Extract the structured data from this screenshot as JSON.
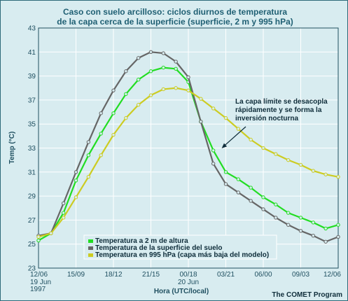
{
  "chart_data": {
    "type": "line",
    "title_line1": "Caso con suelo arcilloso: ciclos diurnos de temperatura",
    "title_line2": "de la capa cerca de la superficie (superficie, 2 m y 995 hPa)",
    "ylabel": "Temp (°C)",
    "xlabel": "Hora (UTC/local)",
    "ylim": [
      23,
      43
    ],
    "yticks": [
      23,
      25,
      27,
      29,
      31,
      33,
      35,
      37,
      39,
      41,
      43
    ],
    "xlim": [
      0,
      24
    ],
    "xticks": [
      {
        "x": 0,
        "label": "12/06"
      },
      {
        "x": 3,
        "label": "15/09"
      },
      {
        "x": 6,
        "label": "18/12"
      },
      {
        "x": 9,
        "label": "21/15"
      },
      {
        "x": 12,
        "label": "00/18"
      },
      {
        "x": 15,
        "label": "03/21"
      },
      {
        "x": 18,
        "label": "06/00"
      },
      {
        "x": 21,
        "label": "09/03"
      },
      {
        "x": 24,
        "label": "12/06"
      }
    ],
    "date_labels": [
      {
        "x": 0,
        "lines": [
          "19 Jun",
          "1997"
        ]
      },
      {
        "x": 12,
        "lines": [
          "20 Jun"
        ]
      }
    ],
    "grid": true,
    "legend_position": "bottom-left",
    "annotation": {
      "lines": [
        "La capa límite se desacopla",
        "rápidamente y se forma la",
        "inversión nocturna"
      ],
      "arrow_to": {
        "x": 14.5,
        "y": 32.8
      }
    },
    "credit": "The COMET Program",
    "series": [
      {
        "name": "Temperatura a 2 m de altura",
        "color": "#22dd22",
        "x": [
          0,
          1,
          2,
          3,
          4,
          5,
          6,
          7,
          8,
          9,
          10,
          11,
          12,
          13,
          14,
          15,
          16,
          17,
          18,
          19,
          20,
          21,
          22,
          23,
          24
        ],
        "y": [
          25.3,
          25.9,
          27.6,
          30.3,
          32.4,
          34.2,
          35.9,
          37.5,
          38.7,
          39.4,
          39.7,
          39.6,
          38.5,
          35.2,
          32.8,
          31.0,
          30.4,
          29.7,
          28.9,
          28.3,
          27.6,
          27.2,
          26.8,
          26.3,
          26.6
        ]
      },
      {
        "name": "Temperatura de la superficie del suelo",
        "color": "#666666",
        "x": [
          0,
          1,
          2,
          3,
          4,
          5,
          6,
          7,
          8,
          9,
          10,
          11,
          12,
          13,
          14,
          15,
          16,
          17,
          18,
          19,
          20,
          21,
          22,
          23,
          24
        ],
        "y": [
          25.7,
          25.9,
          28.4,
          31.0,
          33.5,
          35.9,
          37.8,
          39.4,
          40.5,
          41.0,
          40.9,
          40.2,
          38.9,
          35.2,
          31.7,
          30.0,
          29.3,
          28.6,
          27.9,
          27.2,
          26.6,
          26.1,
          25.7,
          25.2,
          25.6
        ]
      },
      {
        "name": "Temperatura en 995 hPa (capa más baja del modelo)",
        "color": "#cccc22",
        "x": [
          0,
          1,
          2,
          3,
          4,
          5,
          6,
          7,
          8,
          9,
          10,
          11,
          12,
          13,
          14,
          15,
          16,
          17,
          18,
          19,
          20,
          21,
          22,
          23,
          24
        ],
        "y": [
          25.6,
          25.9,
          27.2,
          28.9,
          30.6,
          32.4,
          34.1,
          35.5,
          36.6,
          37.4,
          37.9,
          38.0,
          37.8,
          37.1,
          36.3,
          35.5,
          34.6,
          33.7,
          33.0,
          32.5,
          32.0,
          31.6,
          31.1,
          30.8,
          30.6
        ]
      }
    ]
  }
}
